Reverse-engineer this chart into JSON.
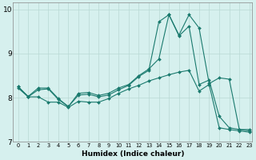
{
  "xlabel": "Humidex (Indice chaleur)",
  "bg_color": "#d6f0ee",
  "line_color": "#1a7a6e",
  "grid_color": "#b8d8d4",
  "xlim": [
    -0.5,
    23.3
  ],
  "ylim": [
    7.0,
    10.15
  ],
  "yticks": [
    7,
    8,
    9,
    10
  ],
  "xticks": [
    0,
    1,
    2,
    3,
    4,
    5,
    6,
    7,
    8,
    9,
    10,
    11,
    12,
    13,
    14,
    15,
    16,
    17,
    18,
    19,
    20,
    21,
    22,
    23
  ],
  "line1_x": [
    0,
    1,
    2,
    3,
    4,
    5,
    6,
    7,
    8,
    9,
    10,
    11,
    12,
    13,
    14,
    15,
    16,
    17,
    18,
    19,
    20,
    21,
    22,
    23
  ],
  "line1_y": [
    8.25,
    8.03,
    8.22,
    8.22,
    7.98,
    7.8,
    8.1,
    8.12,
    8.05,
    8.1,
    8.22,
    8.3,
    8.5,
    8.65,
    8.88,
    9.88,
    9.42,
    9.88,
    9.58,
    8.32,
    8.45,
    8.42,
    7.28,
    7.28
  ],
  "line2_x": [
    0,
    1,
    2,
    3,
    4,
    5,
    6,
    7,
    8,
    9,
    10,
    11,
    12,
    13,
    14,
    15,
    16,
    17,
    18,
    19,
    20,
    21,
    22,
    23
  ],
  "line2_y": [
    8.22,
    8.02,
    8.18,
    8.2,
    7.96,
    7.8,
    8.06,
    8.08,
    8.02,
    8.06,
    8.18,
    8.28,
    8.48,
    8.62,
    9.72,
    9.88,
    9.4,
    9.62,
    8.3,
    8.4,
    7.58,
    7.32,
    7.28,
    7.25
  ],
  "line3_x": [
    0,
    1,
    2,
    3,
    4,
    5,
    6,
    7,
    8,
    9,
    10,
    11,
    12,
    13,
    14,
    15,
    16,
    17,
    18,
    19,
    20,
    21,
    22,
    23
  ],
  "line3_y": [
    8.25,
    8.02,
    8.02,
    7.9,
    7.9,
    7.78,
    7.92,
    7.9,
    7.9,
    7.98,
    8.1,
    8.2,
    8.28,
    8.38,
    8.45,
    8.52,
    8.58,
    8.62,
    8.15,
    8.3,
    7.32,
    7.28,
    7.25,
    7.22
  ]
}
